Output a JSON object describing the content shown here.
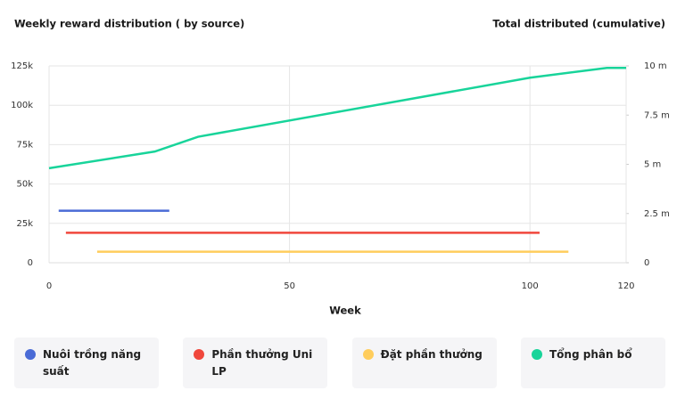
{
  "chart_data": {
    "type": "line",
    "title": "Weekly reward distribution ( by source)",
    "y2_title": "Total distributed (cumulative)",
    "x_label": "Week",
    "xlim": [
      0,
      120
    ],
    "xticks": [
      0,
      50,
      100,
      120
    ],
    "ylim": [
      0,
      125000
    ],
    "yticks": [
      {
        "value": 0,
        "label": "0"
      },
      {
        "value": 25000,
        "label": "25k"
      },
      {
        "value": 50000,
        "label": "50k"
      },
      {
        "value": 75000,
        "label": "75k"
      },
      {
        "value": 100000,
        "label": "100k"
      },
      {
        "value": 125000,
        "label": "125k"
      }
    ],
    "y2lim": [
      0,
      10000000
    ],
    "y2ticks": [
      {
        "value": 0,
        "label": "0"
      },
      {
        "value": 2500000,
        "label": "2.5 m"
      },
      {
        "value": 5000000,
        "label": "5 m"
      },
      {
        "value": 7500000,
        "label": "7.5 m"
      },
      {
        "value": 10000000,
        "label": "10 m"
      }
    ],
    "grid": true,
    "series": [
      {
        "name": "Nuôi trồng năng suất",
        "color": "#4a6bd6",
        "x": [
          2,
          25
        ],
        "values": [
          33000,
          33000
        ]
      },
      {
        "name": "Phần thưởng Uni LP",
        "color": "#f0473c",
        "x": [
          3.5,
          102
        ],
        "values": [
          19000,
          19000
        ]
      },
      {
        "name": "Đặt phần thưởng",
        "color": "#ffcd5c",
        "x": [
          10,
          108
        ],
        "values": [
          7000,
          7000
        ]
      },
      {
        "name": "Tổng phân bổ",
        "color": "#18d49a",
        "axis": "y2",
        "x": [
          0,
          22,
          31,
          100,
          116,
          120
        ],
        "values": [
          4800000,
          5650000,
          6400000,
          9400000,
          9900000,
          9900000
        ]
      }
    ]
  }
}
